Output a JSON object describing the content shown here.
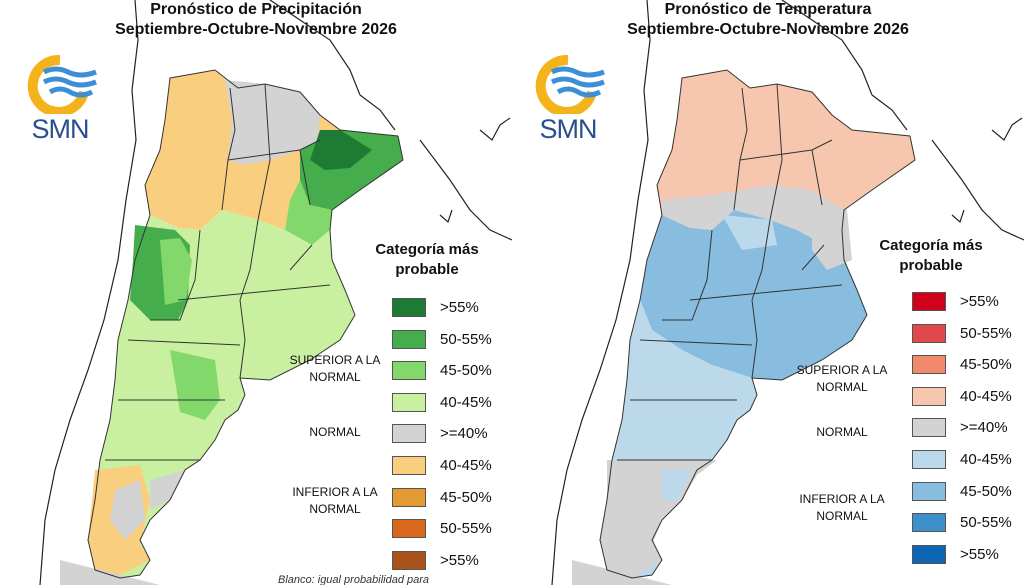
{
  "panels": {
    "precip": {
      "title_line1": "Pronóstico de Precipitación",
      "title_line2": "Septiembre-Octubre-Noviembre 2026",
      "logo_text": "SMN",
      "legend_title_line1": "Categoría más",
      "legend_title_line2": "probable",
      "group_superior": "SUPERIOR A LA NORMAL",
      "group_normal": "NORMAL",
      "group_inferior": "INFERIOR A LA NORMAL",
      "legend": [
        {
          "label": ">55%",
          "color": "#1e7b33"
        },
        {
          "label": "50-55%",
          "color": "#46ad4d"
        },
        {
          "label": "45-50%",
          "color": "#82d86b"
        },
        {
          "label": "40-45%",
          "color": "#c9f0a0"
        },
        {
          "label": ">=40%",
          "color": "#d3d3d3"
        },
        {
          "label": "40-45%",
          "color": "#f9cf7f"
        },
        {
          "label": "45-50%",
          "color": "#e39a32"
        },
        {
          "label": "50-55%",
          "color": "#d8681c"
        },
        {
          "label": ">55%",
          "color": "#a9521a"
        }
      ],
      "footnote": "Blanco: igual probabilidad para"
    },
    "temp": {
      "title_line1": "Pronóstico de Temperatura",
      "title_line2": "Septiembre-Octubre-Noviembre 2026",
      "logo_text": "SMN",
      "legend_title_line1": "Categoría más",
      "legend_title_line2": "probable",
      "group_superior": "SUPERIOR A LA NORMAL",
      "group_normal": "NORMAL",
      "group_inferior": "INFERIOR A LA NORMAL",
      "legend": [
        {
          "label": ">55%",
          "color": "#d0021b"
        },
        {
          "label": "50-55%",
          "color": "#e1474b"
        },
        {
          "label": "45-50%",
          "color": "#f08a6a"
        },
        {
          "label": "40-45%",
          "color": "#f7c6ae"
        },
        {
          "label": ">=40%",
          "color": "#d3d3d3"
        },
        {
          "label": "40-45%",
          "color": "#bcd9ec"
        },
        {
          "label": "45-50%",
          "color": "#88bde0"
        },
        {
          "label": "50-55%",
          "color": "#3f8fca"
        },
        {
          "label": ">55%",
          "color": "#0c66b3"
        }
      ]
    }
  },
  "colors": {
    "logo_sun": "#f4b21b",
    "logo_waves": "#3b8fd6",
    "logo_text": "#2a4f8f",
    "border": "#333333"
  }
}
